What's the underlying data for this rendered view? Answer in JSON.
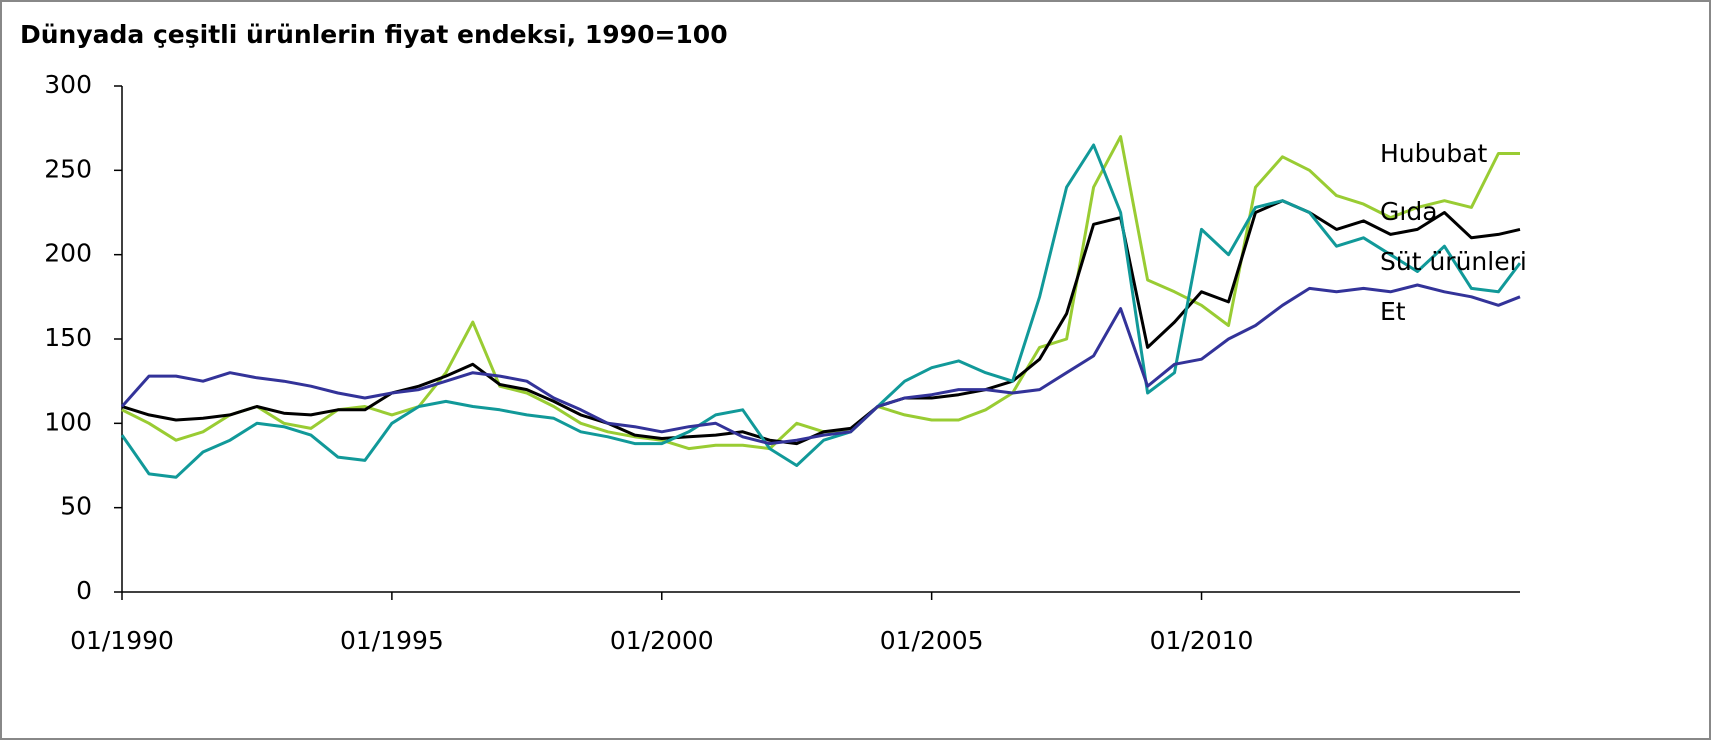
{
  "chart_data": {
    "type": "line",
    "title": "Dünyada çeşitli ürünlerin fiyat endeksi, 1990=100",
    "x": [
      1990,
      1990.5,
      1991,
      1991.5,
      1992,
      1992.5,
      1993,
      1993.5,
      1994,
      1994.5,
      1995,
      1995.5,
      1996,
      1996.5,
      1997,
      1997.5,
      1998,
      1998.5,
      1999,
      1999.5,
      2000,
      2000.5,
      2001,
      2001.5,
      2002,
      2002.5,
      2003,
      2003.5,
      2004,
      2004.5,
      2005,
      2005.5,
      2006,
      2006.5,
      2007,
      2007.5,
      2008,
      2008.5,
      2009,
      2009.5,
      2010,
      2010.5,
      2011,
      2011.5,
      2012,
      2012.5,
      2013,
      2013.5,
      2014,
      2014.5,
      2015,
      2015.5,
      2015.9
    ],
    "xlim": [
      1990,
      2015.9
    ],
    "xticks": [
      {
        "value": 1990,
        "label": "01/1990"
      },
      {
        "value": 1995,
        "label": "01/1995"
      },
      {
        "value": 2000,
        "label": "01/2000"
      },
      {
        "value": 2005,
        "label": "01/2005"
      },
      {
        "value": 2010,
        "label": "01/2010"
      }
    ],
    "ylim": [
      0,
      300
    ],
    "yticks": [
      0,
      50,
      100,
      150,
      200,
      250,
      300
    ],
    "grid": false,
    "series": [
      {
        "name": "Hububat",
        "color": "#99cc33",
        "values": [
          108,
          100,
          90,
          95,
          105,
          110,
          100,
          97,
          108,
          110,
          105,
          110,
          130,
          160,
          122,
          118,
          110,
          100,
          95,
          92,
          90,
          85,
          87,
          87,
          85,
          100,
          95,
          95,
          110,
          105,
          102,
          102,
          108,
          118,
          145,
          150,
          240,
          270,
          185,
          178,
          170,
          158,
          240,
          258,
          250,
          235,
          230,
          222,
          228,
          232,
          228,
          260,
          260
        ]
      },
      {
        "name": "Gıda",
        "color": "#000000",
        "values": [
          110,
          105,
          102,
          103,
          105,
          110,
          106,
          105,
          108,
          108,
          118,
          122,
          128,
          135,
          123,
          120,
          113,
          105,
          100,
          93,
          91,
          92,
          93,
          95,
          90,
          88,
          95,
          97,
          110,
          115,
          115,
          117,
          120,
          125,
          138,
          165,
          218,
          222,
          145,
          160,
          178,
          172,
          225,
          232,
          225,
          215,
          220,
          212,
          215,
          225,
          210,
          212,
          215
        ]
      },
      {
        "name": "Süt ürünleri",
        "color": "#119999",
        "values": [
          93,
          70,
          68,
          83,
          90,
          100,
          98,
          93,
          80,
          78,
          100,
          110,
          113,
          110,
          108,
          105,
          103,
          95,
          92,
          88,
          88,
          95,
          105,
          108,
          85,
          75,
          90,
          95,
          110,
          125,
          133,
          137,
          130,
          125,
          175,
          240,
          265,
          225,
          118,
          130,
          215,
          200,
          228,
          232,
          225,
          205,
          210,
          200,
          190,
          205,
          180,
          178,
          195
        ]
      },
      {
        "name": "Et",
        "color": "#333399",
        "values": [
          110,
          128,
          128,
          125,
          130,
          127,
          125,
          122,
          118,
          115,
          118,
          120,
          125,
          130,
          128,
          125,
          115,
          108,
          100,
          98,
          95,
          98,
          100,
          92,
          88,
          90,
          93,
          95,
          110,
          115,
          117,
          120,
          120,
          118,
          120,
          130,
          140,
          168,
          122,
          135,
          138,
          150,
          158,
          170,
          180,
          178,
          180,
          178,
          182,
          178,
          175,
          170,
          175
        ]
      }
    ]
  }
}
